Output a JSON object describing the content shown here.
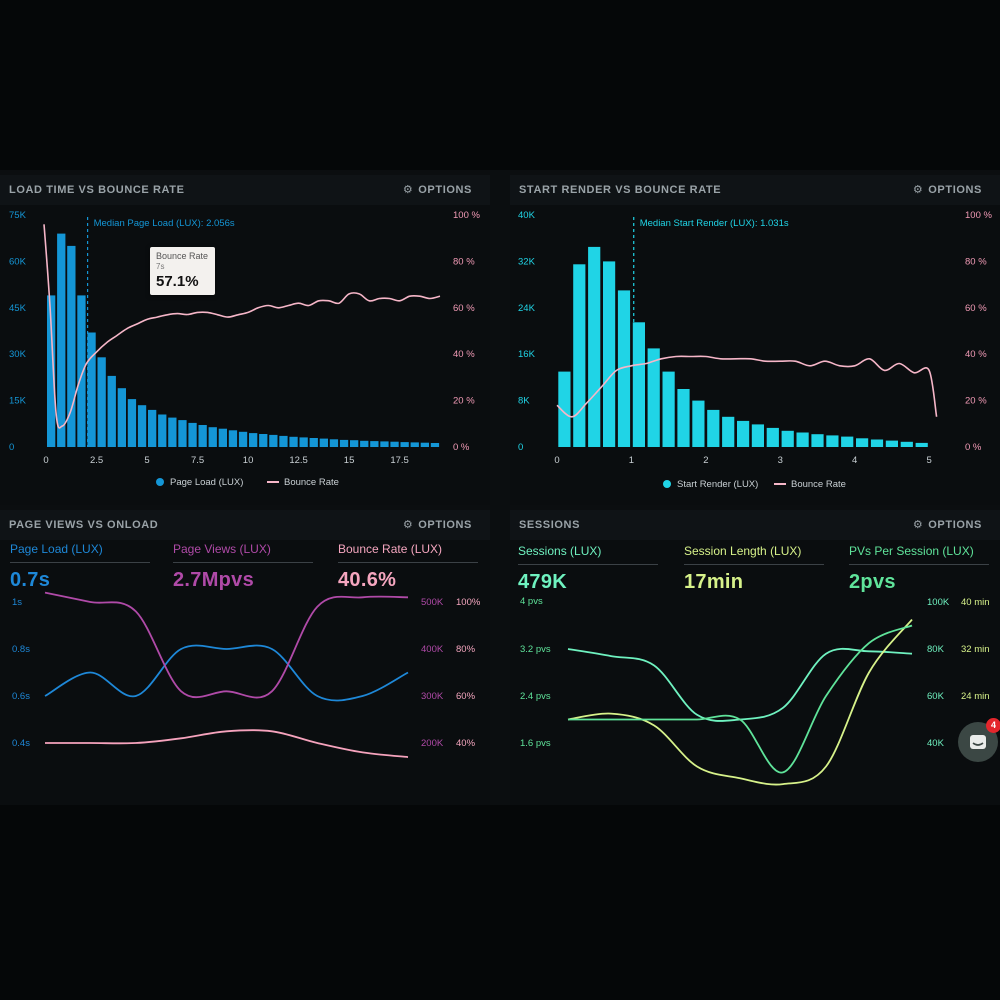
{
  "panels": {
    "load_time": {
      "title": "LOAD TIME VS BOUNCE RATE",
      "options": "OPTIONS",
      "median_label": "Median Page Load (LUX): 2.056s",
      "tooltip": {
        "title": "Bounce Rate",
        "sub": "7s",
        "value": "57.1%"
      },
      "legend": {
        "bar": "Page Load (LUX)",
        "line": "Bounce Rate"
      }
    },
    "start_render": {
      "title": "START RENDER VS BOUNCE RATE",
      "options": "OPTIONS",
      "median_label": "Median Start Render (LUX): 1.031s",
      "legend": {
        "bar": "Start Render (LUX)",
        "line": "Bounce Rate"
      }
    },
    "page_views": {
      "title": "PAGE VIEWS VS ONLOAD",
      "options": "OPTIONS",
      "stats": [
        {
          "label": "Page Load (LUX)",
          "value": "0.7s",
          "color": "#1e88d8"
        },
        {
          "label": "Page Views (LUX)",
          "value": "2.7Mpvs",
          "color": "#b04aa8"
        },
        {
          "label": "Bounce Rate (LUX)",
          "value": "40.6%",
          "color": "#f5a6bf"
        }
      ]
    },
    "sessions": {
      "title": "SESSIONS",
      "options": "OPTIONS",
      "stats": [
        {
          "label": "Sessions (LUX)",
          "value": "479K",
          "color": "#6ff2c0"
        },
        {
          "label": "Session Length (LUX)",
          "value": "17min",
          "color": "#d7f28a"
        },
        {
          "label": "PVs Per Session (LUX)",
          "value": "2pvs",
          "color": "#5fe39a"
        }
      ]
    }
  },
  "chat_badge": "4",
  "colors": {
    "blue_bar": "#1496d6",
    "cyan_bar": "#20d4e6",
    "pink_line": "#f6b6c8",
    "blue_line": "#1e88d8",
    "purple_line": "#b04aa8"
  },
  "chart_data": [
    {
      "type": "bar",
      "title": "LOAD TIME VS BOUNCE RATE",
      "x_ticks": [
        "0",
        "2.5",
        "5",
        "7.5",
        "10",
        "12.5",
        "15",
        "17.5"
      ],
      "y_ticks_left": [
        "0",
        "15K",
        "30K",
        "45K",
        "60K",
        "75K"
      ],
      "y_ticks_right": [
        "0 %",
        "20 %",
        "40 %",
        "60 %",
        "80 %",
        "100 %"
      ],
      "ylim": [
        0,
        75000
      ],
      "y2lim": [
        0,
        100
      ],
      "xlim": [
        -0.3,
        19.5
      ],
      "median": 2.056,
      "series": [
        {
          "name": "Page Load (LUX)",
          "type": "bar",
          "x": [
            0.25,
            0.75,
            1.25,
            1.75,
            2.25,
            2.75,
            3.25,
            3.75,
            4.25,
            4.75,
            5.25,
            5.75,
            6.25,
            6.75,
            7.25,
            7.75,
            8.25,
            8.75,
            9.25,
            9.75,
            10.25,
            10.75,
            11.25,
            11.75,
            12.25,
            12.75,
            13.25,
            13.75,
            14.25,
            14.75,
            15.25,
            15.75,
            16.25,
            16.75,
            17.25,
            17.75,
            18.25,
            18.75,
            19.25
          ],
          "values": [
            49000,
            69000,
            65000,
            49000,
            37000,
            29000,
            23000,
            19000,
            15500,
            13500,
            12000,
            10500,
            9500,
            8700,
            7800,
            7100,
            6400,
            5900,
            5400,
            4900,
            4500,
            4200,
            3900,
            3600,
            3300,
            3100,
            2900,
            2700,
            2500,
            2300,
            2200,
            2000,
            1900,
            1800,
            1700,
            1600,
            1500,
            1400,
            1300
          ]
        },
        {
          "name": "Bounce Rate",
          "type": "line",
          "axis": "right",
          "x": [
            -0.1,
            0.2,
            0.5,
            0.8,
            1.2,
            1.6,
            2.0,
            2.5,
            3.0,
            3.5,
            4.0,
            4.5,
            5.0,
            5.5,
            6.0,
            6.5,
            7.0,
            7.5,
            8.0,
            8.5,
            9.0,
            9.5,
            10.0,
            10.5,
            11.0,
            11.5,
            12.0,
            12.5,
            13.0,
            13.5,
            14.0,
            14.5,
            15.0,
            15.5,
            16.0,
            16.5,
            17.0,
            17.5,
            18.0,
            18.5,
            19.0,
            19.5
          ],
          "values": [
            96,
            60,
            14,
            9,
            15,
            27,
            36,
            41,
            45,
            48,
            51,
            53,
            55,
            56,
            57,
            57.5,
            57.1,
            58,
            58,
            57,
            56,
            57,
            58,
            60,
            61,
            60,
            61,
            62,
            61,
            63,
            63,
            62,
            66,
            66,
            63,
            64,
            64,
            63,
            65,
            65,
            64,
            65
          ]
        }
      ]
    },
    {
      "type": "bar",
      "title": "START RENDER VS BOUNCE RATE",
      "x_ticks": [
        "0",
        "1",
        "2",
        "3",
        "4",
        "5"
      ],
      "y_ticks_left": [
        "0",
        "8K",
        "16K",
        "24K",
        "32K",
        "40K"
      ],
      "y_ticks_right": [
        "0 %",
        "20 %",
        "40 %",
        "60 %",
        "80 %",
        "100 %"
      ],
      "ylim": [
        0,
        40000
      ],
      "y2lim": [
        0,
        100
      ],
      "xlim": [
        0,
        5.2
      ],
      "median": 1.031,
      "series": [
        {
          "name": "Start Render (LUX)",
          "type": "bar",
          "x": [
            0.1,
            0.3,
            0.5,
            0.7,
            0.9,
            1.1,
            1.3,
            1.5,
            1.7,
            1.9,
            2.1,
            2.3,
            2.5,
            2.7,
            2.9,
            3.1,
            3.3,
            3.5,
            3.7,
            3.9,
            4.1,
            4.3,
            4.5,
            4.7,
            4.9
          ],
          "values": [
            13000,
            31500,
            34500,
            32000,
            27000,
            21500,
            17000,
            13000,
            10000,
            8000,
            6400,
            5200,
            4500,
            3900,
            3300,
            2800,
            2500,
            2200,
            2000,
            1800,
            1500,
            1300,
            1100,
            900,
            700
          ]
        },
        {
          "name": "Bounce Rate",
          "type": "line",
          "axis": "right",
          "x": [
            0.0,
            0.2,
            0.4,
            0.6,
            0.8,
            1.0,
            1.2,
            1.4,
            1.6,
            1.8,
            2.0,
            2.2,
            2.4,
            2.6,
            2.8,
            3.0,
            3.2,
            3.4,
            3.6,
            3.8,
            4.0,
            4.2,
            4.4,
            4.6,
            4.8,
            5.0,
            5.1
          ],
          "values": [
            18,
            13,
            19,
            26,
            33,
            35,
            36,
            38,
            39,
            39,
            39,
            38,
            38,
            38,
            37,
            37,
            37,
            35,
            37,
            35,
            35,
            38,
            33,
            36,
            32,
            33,
            13
          ]
        }
      ]
    },
    {
      "type": "line",
      "title": "PAGE VIEWS VS ONLOAD",
      "y_ticks_left": [
        "0.4s",
        "0.6s",
        "0.8s",
        "1s"
      ],
      "y_ticks_right_views": [
        "200K",
        "300K",
        "400K",
        "500K"
      ],
      "y_ticks_right_rate": [
        "40%",
        "60%",
        "80%",
        "100%"
      ],
      "series": [
        {
          "name": "Page Load (LUX)",
          "axis": "left",
          "x": [
            0,
            1,
            2,
            3,
            4,
            5,
            6,
            7,
            8
          ],
          "values": [
            0.6,
            0.7,
            0.6,
            0.8,
            0.8,
            0.8,
            0.6,
            0.6,
            0.7
          ]
        },
        {
          "name": "Page Views (LUX)",
          "axis": "right-views",
          "x": [
            0,
            1,
            2,
            3,
            4,
            5,
            6,
            7,
            8
          ],
          "values": [
            520000,
            500000,
            480000,
            310000,
            310000,
            310000,
            490000,
            510000,
            510000
          ]
        },
        {
          "name": "Bounce Rate (LUX)",
          "axis": "right-rate",
          "x": [
            0,
            1,
            2,
            3,
            4,
            5,
            6,
            7,
            8
          ],
          "values": [
            40,
            40,
            40,
            42,
            45,
            45,
            40,
            36,
            34
          ]
        }
      ]
    },
    {
      "type": "line",
      "title": "SESSIONS",
      "y_ticks_left": [
        "1.6 pvs",
        "2.4 pvs",
        "3.2 pvs",
        "4 pvs"
      ],
      "y_ticks_right_sessions": [
        "40K",
        "60K",
        "80K",
        "100K"
      ],
      "y_ticks_right_length": [
        "24 min",
        "32 min",
        "40 min"
      ],
      "series": [
        {
          "name": "Sessions (LUX)",
          "axis": "right-sessions",
          "x": [
            0,
            1,
            2,
            3,
            4,
            5,
            6,
            7,
            8
          ],
          "values": [
            80000,
            77000,
            73000,
            52000,
            50000,
            55000,
            78000,
            79000,
            78000
          ]
        },
        {
          "name": "Session Length (LUX)",
          "axis": "right-length",
          "x": [
            0,
            1,
            2,
            3,
            4,
            5,
            6,
            7,
            8
          ],
          "values": [
            20,
            21,
            19,
            12,
            10,
            9,
            12,
            28,
            37
          ]
        },
        {
          "name": "PVs Per Session (LUX)",
          "axis": "left",
          "x": [
            0,
            1,
            2,
            3,
            4,
            5,
            6,
            7,
            8
          ],
          "values": [
            2.0,
            2.0,
            2.0,
            2.0,
            2.0,
            1.1,
            2.4,
            3.3,
            3.6
          ]
        }
      ]
    }
  ]
}
